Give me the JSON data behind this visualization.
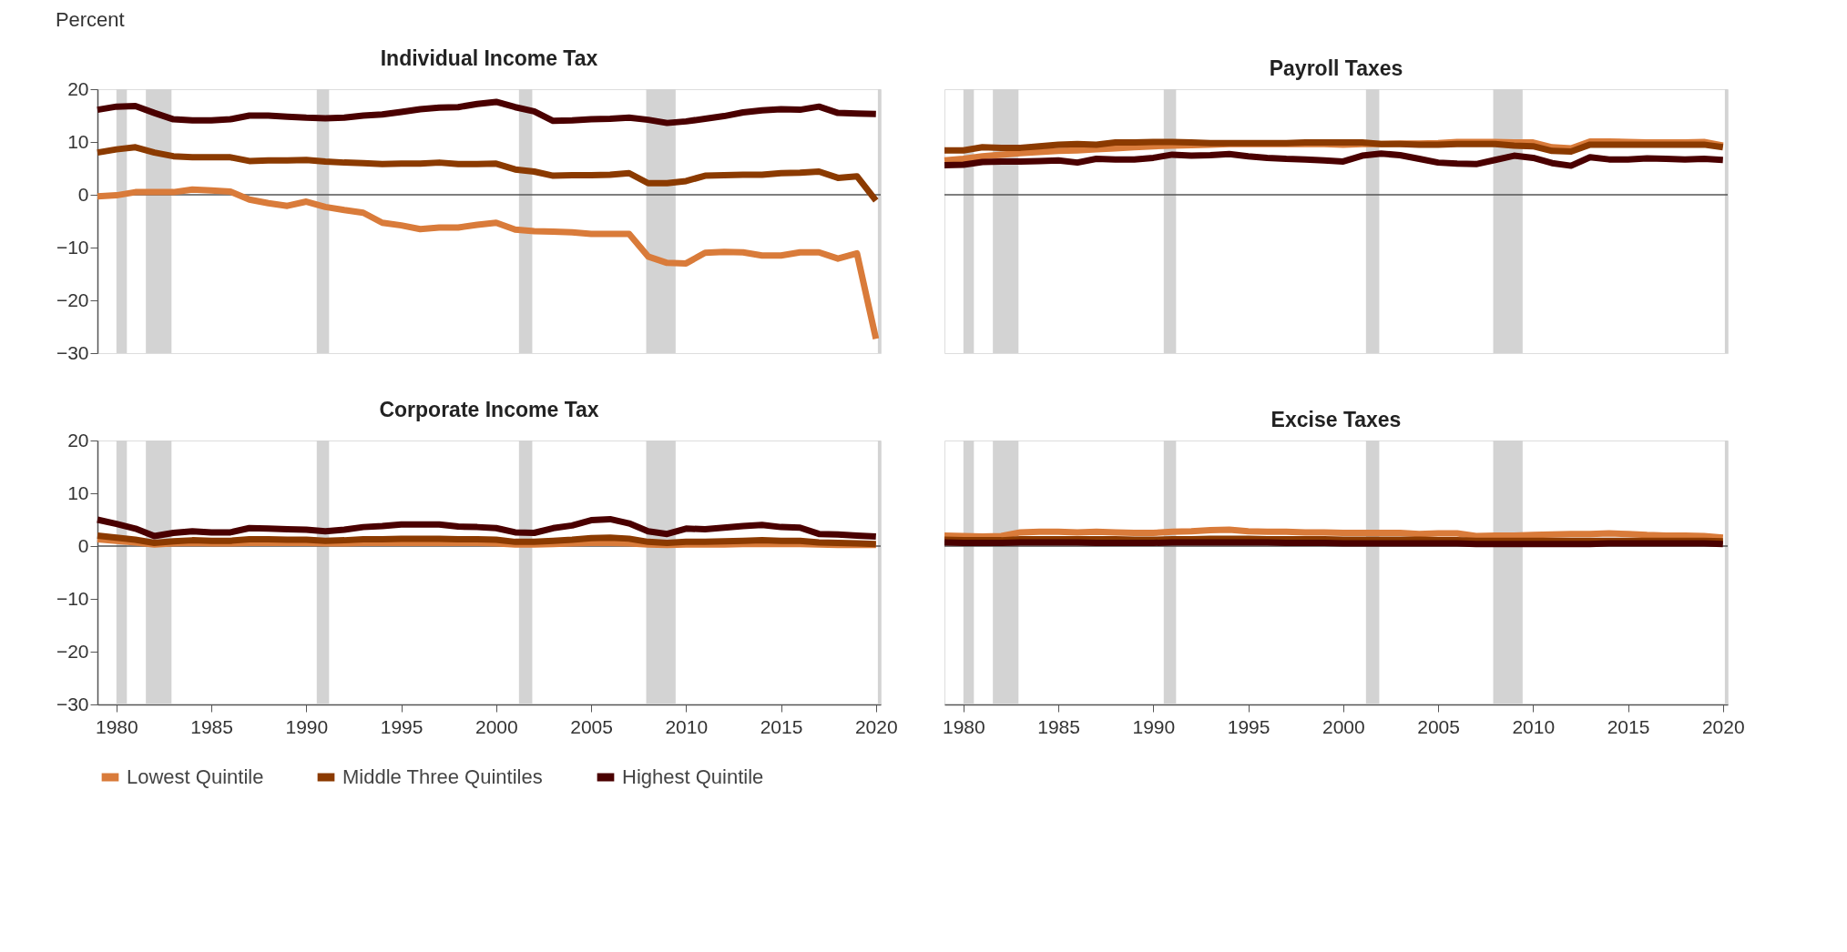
{
  "chart_data": [
    {
      "type": "line",
      "title": "Individual Income Tax",
      "ylabel": "Percent",
      "x": [
        1979,
        1980,
        1981,
        1982,
        1983,
        1984,
        1985,
        1986,
        1987,
        1988,
        1989,
        1990,
        1991,
        1992,
        1993,
        1994,
        1995,
        1996,
        1997,
        1998,
        1999,
        2000,
        2001,
        2002,
        2003,
        2004,
        2005,
        2006,
        2007,
        2008,
        2009,
        2010,
        2011,
        2012,
        2013,
        2014,
        2015,
        2016,
        2017,
        2018,
        2019,
        2020
      ],
      "xlim": [
        1979,
        2020.25
      ],
      "ylim": [
        -30,
        20
      ],
      "yticks": [
        -30,
        -20,
        -10,
        0,
        10,
        20
      ],
      "tick_labels": "y",
      "legend": "bottom",
      "grid": false,
      "line_style": "solid",
      "marker": "none",
      "series": [
        {
          "name": "Lowest Quintile",
          "color": "#d97b3a",
          "values": [
            -0.3,
            -0.1,
            0.5,
            0.5,
            0.5,
            1.0,
            0.8,
            0.6,
            -0.9,
            -1.6,
            -2.1,
            -1.3,
            -2.3,
            -2.9,
            -3.4,
            -5.3,
            -5.8,
            -6.5,
            -6.2,
            -6.2,
            -5.7,
            -5.3,
            -6.6,
            -6.9,
            -7.0,
            -7.1,
            -7.4,
            -7.4,
            -7.4,
            -11.7,
            -12.9,
            -13.0,
            -11.0,
            -10.8,
            -10.9,
            -11.5,
            -11.5,
            -10.9,
            -10.9,
            -12.1,
            -11.1,
            -27.3
          ]
        },
        {
          "name": "Middle Three Quintiles",
          "color": "#8b3a00",
          "values": [
            8.0,
            8.6,
            9.0,
            8.0,
            7.3,
            7.1,
            7.1,
            7.1,
            6.4,
            6.5,
            6.5,
            6.6,
            6.3,
            6.1,
            6.0,
            5.8,
            5.9,
            5.9,
            6.1,
            5.8,
            5.8,
            5.9,
            4.8,
            4.4,
            3.6,
            3.7,
            3.7,
            3.8,
            4.1,
            2.2,
            2.2,
            2.6,
            3.6,
            3.7,
            3.8,
            3.8,
            4.1,
            4.2,
            4.4,
            3.2,
            3.5,
            -1.1
          ]
        },
        {
          "name": "Highest Quintile",
          "color": "#4a0000",
          "values": [
            16.1,
            16.7,
            16.8,
            15.5,
            14.3,
            14.1,
            14.1,
            14.3,
            15.0,
            15.0,
            14.8,
            14.6,
            14.5,
            14.6,
            15.0,
            15.2,
            15.7,
            16.2,
            16.5,
            16.6,
            17.2,
            17.6,
            16.6,
            15.8,
            14.0,
            14.1,
            14.3,
            14.4,
            14.6,
            14.2,
            13.6,
            13.9,
            14.4,
            14.9,
            15.6,
            16.0,
            16.2,
            16.1,
            16.7,
            15.5,
            15.4,
            15.3
          ]
        }
      ],
      "ref_lines": [
        {
          "axis": "y",
          "value": 0,
          "color": "#555555"
        }
      ],
      "bands": [
        {
          "axis": "x",
          "from": 1980.0,
          "to": 1980.55,
          "color": "#d3d3d3"
        },
        {
          "axis": "x",
          "from": 1981.55,
          "to": 1982.9,
          "color": "#d3d3d3"
        },
        {
          "axis": "x",
          "from": 1990.55,
          "to": 1991.2,
          "color": "#d3d3d3"
        },
        {
          "axis": "x",
          "from": 2001.2,
          "to": 2001.9,
          "color": "#d3d3d3"
        },
        {
          "axis": "x",
          "from": 2007.9,
          "to": 2009.45,
          "color": "#d3d3d3"
        },
        {
          "axis": "x",
          "from": 2020.1,
          "to": 2020.25,
          "color": "#d3d3d3"
        }
      ]
    },
    {
      "type": "line",
      "title": "Payroll Taxes",
      "x": [
        1979,
        1980,
        1981,
        1982,
        1983,
        1984,
        1985,
        1986,
        1987,
        1988,
        1989,
        1990,
        1991,
        1992,
        1993,
        1994,
        1995,
        1996,
        1997,
        1998,
        1999,
        2000,
        2001,
        2002,
        2003,
        2004,
        2005,
        2006,
        2007,
        2008,
        2009,
        2010,
        2011,
        2012,
        2013,
        2014,
        2015,
        2016,
        2017,
        2018,
        2019,
        2020
      ],
      "xlim": [
        1979,
        2020.25
      ],
      "ylim": [
        -30,
        20
      ],
      "tick_labels": false,
      "grid": false,
      "line_style": "solid",
      "marker": "none",
      "series": [
        {
          "name": "Lowest Quintile",
          "color": "#d97b3a",
          "values": [
            6.5,
            6.8,
            7.3,
            7.6,
            7.9,
            8.1,
            8.3,
            8.4,
            8.6,
            8.8,
            9.0,
            9.2,
            9.3,
            9.4,
            9.5,
            9.6,
            9.6,
            9.6,
            9.6,
            9.6,
            9.6,
            9.5,
            9.6,
            9.6,
            9.7,
            9.7,
            9.8,
            10.0,
            10.0,
            10.0,
            9.9,
            9.9,
            9.0,
            8.8,
            10.1,
            10.1,
            10.0,
            9.9,
            9.9,
            9.9,
            10.0,
            9.3
          ]
        },
        {
          "name": "Middle Three Quintiles",
          "color": "#8b3a00",
          "values": [
            8.4,
            8.4,
            9.0,
            8.9,
            8.9,
            9.2,
            9.5,
            9.6,
            9.5,
            9.9,
            9.9,
            10.0,
            10.0,
            9.9,
            9.8,
            9.8,
            9.8,
            9.8,
            9.8,
            9.9,
            9.9,
            9.9,
            9.9,
            9.6,
            9.6,
            9.5,
            9.5,
            9.6,
            9.6,
            9.6,
            9.3,
            9.2,
            8.3,
            8.2,
            9.5,
            9.5,
            9.5,
            9.5,
            9.5,
            9.5,
            9.5,
            9.0
          ]
        },
        {
          "name": "Highest Quintile",
          "color": "#4a0000",
          "values": [
            5.6,
            5.7,
            6.2,
            6.3,
            6.3,
            6.4,
            6.5,
            6.1,
            6.8,
            6.7,
            6.7,
            7.0,
            7.6,
            7.4,
            7.5,
            7.7,
            7.3,
            7.0,
            6.8,
            6.7,
            6.5,
            6.3,
            7.4,
            7.8,
            7.5,
            6.8,
            6.1,
            5.9,
            5.8,
            6.6,
            7.4,
            7.0,
            6.0,
            5.5,
            7.1,
            6.7,
            6.7,
            6.9,
            6.8,
            6.7,
            6.8,
            6.6
          ]
        }
      ],
      "ref_lines": [
        {
          "axis": "y",
          "value": 0,
          "color": "#555555"
        }
      ],
      "bands": [
        {
          "axis": "x",
          "from": 1980.0,
          "to": 1980.55,
          "color": "#d3d3d3"
        },
        {
          "axis": "x",
          "from": 1981.55,
          "to": 1982.9,
          "color": "#d3d3d3"
        },
        {
          "axis": "x",
          "from": 1990.55,
          "to": 1991.2,
          "color": "#d3d3d3"
        },
        {
          "axis": "x",
          "from": 2001.2,
          "to": 2001.9,
          "color": "#d3d3d3"
        },
        {
          "axis": "x",
          "from": 2007.9,
          "to": 2009.45,
          "color": "#d3d3d3"
        },
        {
          "axis": "x",
          "from": 2020.1,
          "to": 2020.25,
          "color": "#d3d3d3"
        }
      ]
    },
    {
      "type": "line",
      "title": "Corporate Income Tax",
      "x": [
        1979,
        1980,
        1981,
        1982,
        1983,
        1984,
        1985,
        1986,
        1987,
        1988,
        1989,
        1990,
        1991,
        1992,
        1993,
        1994,
        1995,
        1996,
        1997,
        1998,
        1999,
        2000,
        2001,
        2002,
        2003,
        2004,
        2005,
        2006,
        2007,
        2008,
        2009,
        2010,
        2011,
        2012,
        2013,
        2014,
        2015,
        2016,
        2017,
        2018,
        2019,
        2020
      ],
      "xlim": [
        1979,
        2020.25
      ],
      "xticks": [
        1980,
        1985,
        1990,
        1995,
        2000,
        2005,
        2010,
        2015,
        2020
      ],
      "ylim": [
        -30,
        20
      ],
      "yticks": [
        -30,
        -20,
        -10,
        0,
        10,
        20
      ],
      "grid": false,
      "line_style": "solid",
      "marker": "none",
      "series": [
        {
          "name": "Lowest Quintile",
          "color": "#d97b3a",
          "values": [
            1.3,
            1.0,
            0.7,
            0.3,
            0.5,
            0.6,
            0.5,
            0.5,
            0.6,
            0.6,
            0.6,
            0.6,
            0.5,
            0.5,
            0.6,
            0.6,
            0.6,
            0.6,
            0.6,
            0.6,
            0.6,
            0.5,
            0.3,
            0.3,
            0.4,
            0.5,
            0.6,
            0.6,
            0.5,
            0.3,
            0.2,
            0.3,
            0.3,
            0.3,
            0.4,
            0.4,
            0.4,
            0.4,
            0.3,
            0.2,
            0.2,
            0.2
          ]
        },
        {
          "name": "Middle Three Quintiles",
          "color": "#8b3a00",
          "values": [
            2.0,
            1.6,
            1.2,
            0.6,
            0.9,
            1.1,
            1.0,
            1.0,
            1.3,
            1.3,
            1.2,
            1.2,
            1.0,
            1.1,
            1.3,
            1.3,
            1.4,
            1.4,
            1.4,
            1.3,
            1.3,
            1.2,
            0.8,
            0.8,
            1.0,
            1.2,
            1.5,
            1.6,
            1.4,
            0.8,
            0.6,
            0.8,
            0.8,
            0.9,
            1.0,
            1.1,
            1.0,
            1.0,
            0.7,
            0.6,
            0.5,
            0.4
          ]
        },
        {
          "name": "Highest Quintile",
          "color": "#4a0000",
          "values": [
            5.0,
            4.2,
            3.3,
            1.9,
            2.5,
            2.8,
            2.6,
            2.6,
            3.4,
            3.3,
            3.2,
            3.1,
            2.8,
            3.1,
            3.6,
            3.8,
            4.1,
            4.1,
            4.1,
            3.7,
            3.6,
            3.4,
            2.6,
            2.5,
            3.4,
            3.9,
            4.9,
            5.1,
            4.3,
            2.8,
            2.3,
            3.3,
            3.2,
            3.5,
            3.8,
            4.0,
            3.6,
            3.5,
            2.3,
            2.2,
            2.0,
            1.8
          ]
        }
      ],
      "ref_lines": [
        {
          "axis": "y",
          "value": 0,
          "color": "#555555"
        }
      ],
      "bands": [
        {
          "axis": "x",
          "from": 1980.0,
          "to": 1980.55,
          "color": "#d3d3d3"
        },
        {
          "axis": "x",
          "from": 1981.55,
          "to": 1982.9,
          "color": "#d3d3d3"
        },
        {
          "axis": "x",
          "from": 1990.55,
          "to": 1991.2,
          "color": "#d3d3d3"
        },
        {
          "axis": "x",
          "from": 2001.2,
          "to": 2001.9,
          "color": "#d3d3d3"
        },
        {
          "axis": "x",
          "from": 2007.9,
          "to": 2009.45,
          "color": "#d3d3d3"
        },
        {
          "axis": "x",
          "from": 2020.1,
          "to": 2020.25,
          "color": "#d3d3d3"
        }
      ]
    },
    {
      "type": "line",
      "title": "Excise Taxes",
      "x": [
        1979,
        1980,
        1981,
        1982,
        1983,
        1984,
        1985,
        1986,
        1987,
        1988,
        1989,
        1990,
        1991,
        1992,
        1993,
        1994,
        1995,
        1996,
        1997,
        1998,
        1999,
        2000,
        2001,
        2002,
        2003,
        2004,
        2005,
        2006,
        2007,
        2008,
        2009,
        2010,
        2011,
        2012,
        2013,
        2014,
        2015,
        2016,
        2017,
        2018,
        2019,
        2020
      ],
      "xlim": [
        1979,
        2020.25
      ],
      "xticks": [
        1980,
        1985,
        1990,
        1995,
        2000,
        2005,
        2010,
        2015,
        2020
      ],
      "ylim": [
        -30,
        20
      ],
      "tick_labels": "x",
      "grid": false,
      "line_style": "solid",
      "marker": "none",
      "series": [
        {
          "name": "Lowest Quintile",
          "color": "#d97b3a",
          "values": [
            2.0,
            1.9,
            1.8,
            1.9,
            2.6,
            2.7,
            2.7,
            2.6,
            2.7,
            2.6,
            2.5,
            2.5,
            2.7,
            2.8,
            3.0,
            3.1,
            2.8,
            2.7,
            2.7,
            2.6,
            2.6,
            2.5,
            2.5,
            2.5,
            2.5,
            2.3,
            2.4,
            2.4,
            1.9,
            2.0,
            2.0,
            2.1,
            2.2,
            2.3,
            2.3,
            2.4,
            2.3,
            2.1,
            2.0,
            2.0,
            1.9,
            1.6
          ]
        },
        {
          "name": "Middle Three Quintiles",
          "color": "#8b3a00",
          "values": [
            1.2,
            1.1,
            1.1,
            1.1,
            1.3,
            1.3,
            1.3,
            1.3,
            1.3,
            1.3,
            1.2,
            1.2,
            1.3,
            1.3,
            1.4,
            1.4,
            1.4,
            1.3,
            1.3,
            1.3,
            1.3,
            1.2,
            1.2,
            1.2,
            1.2,
            1.2,
            1.1,
            1.1,
            1.0,
            1.0,
            1.0,
            1.0,
            1.0,
            1.0,
            1.0,
            1.0,
            1.0,
            1.0,
            1.0,
            1.0,
            1.0,
            0.9
          ]
        },
        {
          "name": "Highest Quintile",
          "color": "#4a0000",
          "values": [
            0.7,
            0.6,
            0.6,
            0.6,
            0.7,
            0.7,
            0.7,
            0.7,
            0.6,
            0.6,
            0.6,
            0.6,
            0.7,
            0.7,
            0.7,
            0.7,
            0.7,
            0.7,
            0.6,
            0.6,
            0.6,
            0.5,
            0.5,
            0.5,
            0.5,
            0.5,
            0.5,
            0.5,
            0.4,
            0.4,
            0.4,
            0.4,
            0.4,
            0.4,
            0.4,
            0.5,
            0.5,
            0.5,
            0.5,
            0.5,
            0.5,
            0.4
          ]
        }
      ],
      "ref_lines": [
        {
          "axis": "y",
          "value": 0,
          "color": "#555555"
        }
      ],
      "bands": [
        {
          "axis": "x",
          "from": 1980.0,
          "to": 1980.55,
          "color": "#d3d3d3"
        },
        {
          "axis": "x",
          "from": 1981.55,
          "to": 1982.9,
          "color": "#d3d3d3"
        },
        {
          "axis": "x",
          "from": 1990.55,
          "to": 1991.2,
          "color": "#d3d3d3"
        },
        {
          "axis": "x",
          "from": 2001.2,
          "to": 2001.9,
          "color": "#d3d3d3"
        },
        {
          "axis": "x",
          "from": 2007.9,
          "to": 2009.45,
          "color": "#d3d3d3"
        },
        {
          "axis": "x",
          "from": 2020.1,
          "to": 2020.25,
          "color": "#d3d3d3"
        }
      ]
    }
  ]
}
